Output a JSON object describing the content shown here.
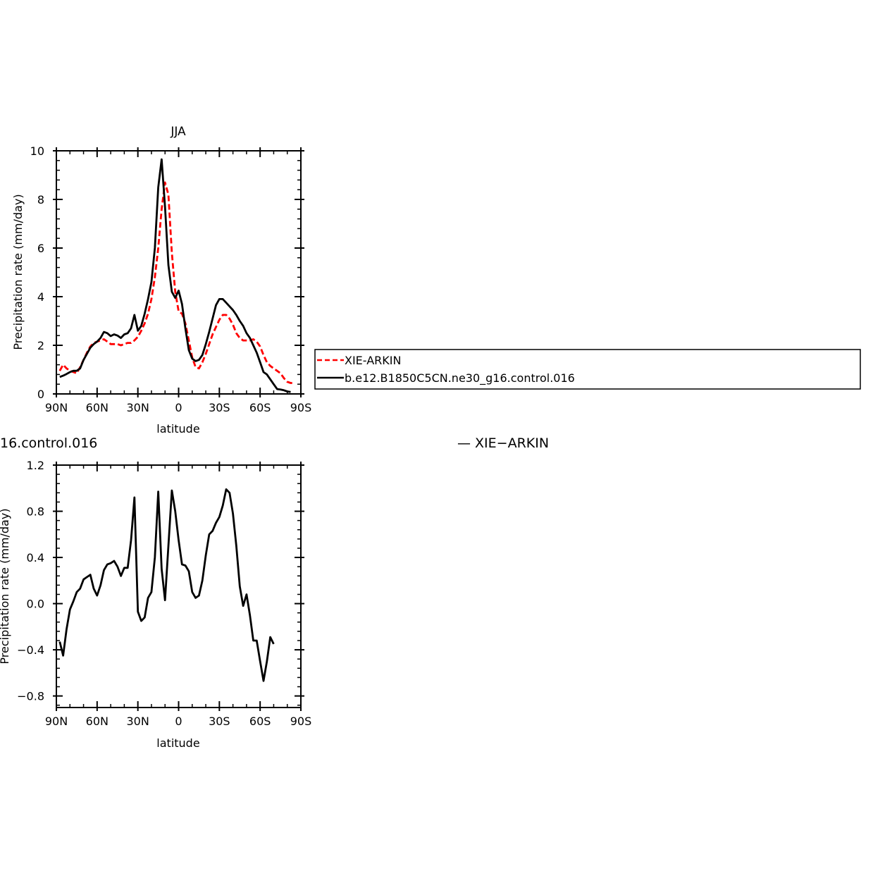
{
  "chart_data": [
    {
      "type": "line",
      "title": "JJA",
      "xlabel": "latitude",
      "ylabel": "Precipitation rate (mm/day)",
      "xlim": [
        90,
        -90
      ],
      "ylim": [
        0,
        10
      ],
      "x_ticks": [
        90,
        60,
        30,
        0,
        -30,
        -60,
        -90
      ],
      "x_tick_labels": [
        "90N",
        "60N",
        "30N",
        "0",
        "30S",
        "60S",
        "90S"
      ],
      "y_ticks": [
        0,
        2,
        4,
        6,
        8,
        10
      ],
      "y_tick_labels": [
        "0",
        "2",
        "4",
        "6",
        "8",
        "10"
      ],
      "legend_position": "right",
      "series": [
        {
          "name": "XIE-ARKIN",
          "color": "#ff0000",
          "dashed": true,
          "points": [
            [
              87.5,
              0.95
            ],
            [
              85,
              1.2
            ],
            [
              82.5,
              1.05
            ],
            [
              80,
              0.95
            ],
            [
              77.5,
              0.9
            ],
            [
              75,
              0.85
            ],
            [
              72.5,
              1.1
            ],
            [
              70,
              1.4
            ],
            [
              67.5,
              1.7
            ],
            [
              65,
              1.95
            ],
            [
              62.5,
              2.1
            ],
            [
              60,
              2.15
            ],
            [
              57.5,
              2.2
            ],
            [
              55,
              2.25
            ],
            [
              52.5,
              2.15
            ],
            [
              50,
              2.05
            ],
            [
              47.5,
              2.05
            ],
            [
              45,
              2.05
            ],
            [
              42.5,
              2.0
            ],
            [
              40,
              2.05
            ],
            [
              37.5,
              2.1
            ],
            [
              35,
              2.1
            ],
            [
              32.5,
              2.2
            ],
            [
              30,
              2.35
            ],
            [
              27.5,
              2.6
            ],
            [
              25,
              2.9
            ],
            [
              22.5,
              3.3
            ],
            [
              20,
              3.9
            ],
            [
              17.5,
              4.8
            ],
            [
              15,
              6.0
            ],
            [
              12.5,
              7.6
            ],
            [
              10,
              8.7
            ],
            [
              7.5,
              8.2
            ],
            [
              5,
              5.8
            ],
            [
              2.5,
              4.2
            ],
            [
              0,
              3.4
            ],
            [
              -2.5,
              3.3
            ],
            [
              -5,
              2.9
            ],
            [
              -7.5,
              2.2
            ],
            [
              -10,
              1.5
            ],
            [
              -12.5,
              1.1
            ],
            [
              -15,
              1.05
            ],
            [
              -17.5,
              1.3
            ],
            [
              -20,
              1.65
            ],
            [
              -22.5,
              2.05
            ],
            [
              -25,
              2.45
            ],
            [
              -27.5,
              2.75
            ],
            [
              -30,
              3.05
            ],
            [
              -32.5,
              3.25
            ],
            [
              -35,
              3.25
            ],
            [
              -37.5,
              3.1
            ],
            [
              -40,
              2.85
            ],
            [
              -42.5,
              2.5
            ],
            [
              -45,
              2.3
            ],
            [
              -47.5,
              2.2
            ],
            [
              -50,
              2.2
            ],
            [
              -52.5,
              2.2
            ],
            [
              -55,
              2.25
            ],
            [
              -57.5,
              2.15
            ],
            [
              -60,
              1.95
            ],
            [
              -62.5,
              1.6
            ],
            [
              -65,
              1.3
            ],
            [
              -67.5,
              1.15
            ],
            [
              -70,
              1.05
            ],
            [
              -72.5,
              0.95
            ],
            [
              -75,
              0.85
            ],
            [
              -77.5,
              0.65
            ],
            [
              -80,
              0.5
            ],
            [
              -82.5,
              0.45
            ],
            [
              -85,
              0.45
            ]
          ]
        },
        {
          "name": "b.e12.B1850C5CN.ne30_g16.control.016",
          "color": "#000000",
          "dashed": false,
          "points": [
            [
              87.5,
              0.7
            ],
            [
              85,
              0.75
            ],
            [
              82.5,
              0.82
            ],
            [
              80,
              0.9
            ],
            [
              77.5,
              0.95
            ],
            [
              75,
              0.95
            ],
            [
              72.5,
              1.05
            ],
            [
              70,
              1.4
            ],
            [
              67.5,
              1.65
            ],
            [
              65,
              1.9
            ],
            [
              62.5,
              2.05
            ],
            [
              60,
              2.15
            ],
            [
              57.5,
              2.3
            ],
            [
              55,
              2.55
            ],
            [
              52.5,
              2.5
            ],
            [
              50,
              2.38
            ],
            [
              47.5,
              2.45
            ],
            [
              45,
              2.4
            ],
            [
              42.5,
              2.3
            ],
            [
              40,
              2.45
            ],
            [
              37.5,
              2.5
            ],
            [
              35,
              2.7
            ],
            [
              32.5,
              3.25
            ],
            [
              30,
              2.6
            ],
            [
              27.5,
              2.8
            ],
            [
              25,
              3.3
            ],
            [
              22.5,
              3.9
            ],
            [
              20,
              4.6
            ],
            [
              17.5,
              6.0
            ],
            [
              15,
              8.5
            ],
            [
              12.5,
              9.65
            ],
            [
              10,
              7.7
            ],
            [
              7.5,
              5.3
            ],
            [
              5,
              4.2
            ],
            [
              2.5,
              3.95
            ],
            [
              0,
              4.25
            ],
            [
              -2.5,
              3.7
            ],
            [
              -5,
              2.7
            ],
            [
              -7.5,
              1.8
            ],
            [
              -10,
              1.45
            ],
            [
              -12.5,
              1.35
            ],
            [
              -15,
              1.4
            ],
            [
              -17.5,
              1.6
            ],
            [
              -20,
              2.05
            ],
            [
              -22.5,
              2.55
            ],
            [
              -25,
              3.1
            ],
            [
              -27.5,
              3.65
            ],
            [
              -30,
              3.9
            ],
            [
              -32.5,
              3.9
            ],
            [
              -35,
              3.75
            ],
            [
              -37.5,
              3.6
            ],
            [
              -40,
              3.45
            ],
            [
              -42.5,
              3.25
            ],
            [
              -45,
              3.0
            ],
            [
              -47.5,
              2.8
            ],
            [
              -50,
              2.5
            ],
            [
              -52.5,
              2.3
            ],
            [
              -55,
              2.0
            ],
            [
              -57.5,
              1.7
            ],
            [
              -60,
              1.3
            ],
            [
              -62.5,
              0.9
            ],
            [
              -65,
              0.8
            ],
            [
              -67.5,
              0.6
            ],
            [
              -70,
              0.4
            ],
            [
              -72.5,
              0.2
            ],
            [
              -75,
              0.18
            ],
            [
              -77.5,
              0.15
            ],
            [
              -80,
              0.1
            ],
            [
              -82.5,
              0.08
            ]
          ]
        }
      ]
    },
    {
      "type": "line",
      "title": "",
      "xlabel": "latitude",
      "ylabel": "Precipitation rate (mm/day)",
      "xlim": [
        90,
        -90
      ],
      "ylim": [
        -0.9,
        1.2
      ],
      "x_ticks": [
        90,
        60,
        30,
        0,
        -30,
        -60,
        -90
      ],
      "x_tick_labels": [
        "90N",
        "60N",
        "30N",
        "0",
        "30S",
        "60S",
        "90S"
      ],
      "y_ticks": [
        -0.8,
        -0.4,
        0.0,
        0.4,
        0.8,
        1.2
      ],
      "y_tick_labels": [
        "-0.8",
        "-0.4",
        "0.0",
        "0.4",
        "0.8",
        "1.2"
      ],
      "series": [
        {
          "name": "",
          "color": "#000000",
          "dashed": false,
          "points": [
            [
              87.5,
              -0.33
            ],
            [
              85,
              -0.45
            ],
            [
              82.5,
              -0.22
            ],
            [
              80,
              -0.05
            ],
            [
              77.5,
              0.02
            ],
            [
              75,
              0.1
            ],
            [
              72.5,
              0.13
            ],
            [
              70,
              0.21
            ],
            [
              67.5,
              0.23
            ],
            [
              65,
              0.25
            ],
            [
              62.5,
              0.13
            ],
            [
              60,
              0.07
            ],
            [
              57.5,
              0.16
            ],
            [
              55,
              0.29
            ],
            [
              52.5,
              0.34
            ],
            [
              50,
              0.35
            ],
            [
              47.5,
              0.37
            ],
            [
              45,
              0.32
            ],
            [
              42.5,
              0.24
            ],
            [
              40,
              0.31
            ],
            [
              37.5,
              0.31
            ],
            [
              35,
              0.55
            ],
            [
              32.5,
              0.92
            ],
            [
              30,
              -0.07
            ],
            [
              27.5,
              -0.15
            ],
            [
              25,
              -0.12
            ],
            [
              22.5,
              0.05
            ],
            [
              20,
              0.1
            ],
            [
              17.5,
              0.4
            ],
            [
              15,
              0.97
            ],
            [
              12.5,
              0.3
            ],
            [
              10,
              0.03
            ],
            [
              7.5,
              0.5
            ],
            [
              5,
              0.98
            ],
            [
              2.5,
              0.8
            ],
            [
              0,
              0.55
            ],
            [
              -2.5,
              0.34
            ],
            [
              -5,
              0.33
            ],
            [
              -7.5,
              0.28
            ],
            [
              -10,
              0.1
            ],
            [
              -12.5,
              0.05
            ],
            [
              -15,
              0.07
            ],
            [
              -17.5,
              0.2
            ],
            [
              -20,
              0.42
            ],
            [
              -22.5,
              0.6
            ],
            [
              -25,
              0.63
            ],
            [
              -27.5,
              0.7
            ],
            [
              -30,
              0.75
            ],
            [
              -32.5,
              0.85
            ],
            [
              -35,
              0.99
            ],
            [
              -37.5,
              0.96
            ],
            [
              -40,
              0.78
            ],
            [
              -42.5,
              0.5
            ],
            [
              -45,
              0.15
            ],
            [
              -47.5,
              -0.02
            ],
            [
              -50,
              0.08
            ],
            [
              -52.5,
              -0.1
            ],
            [
              -55,
              -0.32
            ],
            [
              -57.5,
              -0.32
            ],
            [
              -60,
              -0.5
            ],
            [
              -62.5,
              -0.67
            ],
            [
              -65,
              -0.5
            ],
            [
              -67.5,
              -0.29
            ],
            [
              -70,
              -0.35
            ]
          ]
        }
      ]
    }
  ],
  "legend": {
    "entries": [
      "XIE-ARKIN",
      "b.e12.B1850C5CN.ne30_g16.control.016"
    ]
  },
  "clipped_labels": {
    "left": "16.control.016",
    "right": "— XIE−ARKIN"
  }
}
